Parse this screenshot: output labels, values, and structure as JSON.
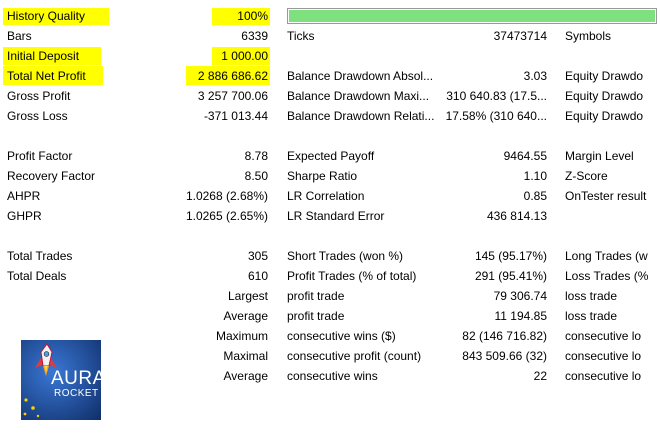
{
  "history_quality": {
    "label": "History Quality",
    "value": "100%",
    "progress_fraction": 1.0
  },
  "rows": [
    {
      "c1": "Bars",
      "c2": "6339",
      "c3": "Ticks",
      "c4": "37473714",
      "c5": "Symbols"
    },
    {
      "c1": "Initial Deposit",
      "c2": "1 000.00",
      "c3": "",
      "c4": "",
      "c5": ""
    },
    {
      "c1": "Total Net Profit",
      "c2": "2 886 686.62",
      "c3": "Balance Drawdown Absol...",
      "c4": "3.03",
      "c5": "Equity Drawdo"
    },
    {
      "c1": "Gross Profit",
      "c2": "3 257 700.06",
      "c3": "Balance Drawdown Maxi...",
      "c4": "310 640.83 (17.5...",
      "c5": "Equity Drawdo"
    },
    {
      "c1": "Gross Loss",
      "c2": "-371 013.44",
      "c3": "Balance Drawdown Relati...",
      "c4": "17.58% (310 640...",
      "c5": "Equity Drawdo"
    },
    {
      "c1": "",
      "c2": "",
      "c3": "",
      "c4": "",
      "c5": ""
    },
    {
      "c1": "Profit Factor",
      "c2": "8.78",
      "c3": "Expected Payoff",
      "c4": "9464.55",
      "c5": "Margin Level"
    },
    {
      "c1": "Recovery Factor",
      "c2": "8.50",
      "c3": "Sharpe Ratio",
      "c4": "1.10",
      "c5": "Z-Score"
    },
    {
      "c1": "AHPR",
      "c2": "1.0268 (2.68%)",
      "c3": "LR Correlation",
      "c4": "0.85",
      "c5": "OnTester result"
    },
    {
      "c1": "GHPR",
      "c2": "1.0265 (2.65%)",
      "c3": "LR Standard Error",
      "c4": "436 814.13",
      "c5": ""
    },
    {
      "c1": "",
      "c2": "",
      "c3": "",
      "c4": "",
      "c5": ""
    },
    {
      "c1": "Total Trades",
      "c2": "305",
      "c3": "Short Trades (won %)",
      "c4": "145 (95.17%)",
      "c5": "Long Trades (w"
    },
    {
      "c1": "Total Deals",
      "c2": "610",
      "c3": "Profit Trades (% of total)",
      "c4": "291 (95.41%)",
      "c5": "Loss Trades (%"
    },
    {
      "c1": "",
      "c2": "Largest",
      "c3": "profit trade",
      "c4": "79 306.74",
      "c5": "loss trade"
    },
    {
      "c1": "",
      "c2": "Average",
      "c3": "profit trade",
      "c4": "11 194.85",
      "c5": "loss trade"
    },
    {
      "c1": "",
      "c2": "Maximum",
      "c3": "consecutive wins ($)",
      "c4": "82 (146 716.82)",
      "c5": "consecutive lo"
    },
    {
      "c1": "",
      "c2": "Maximal",
      "c3": "consecutive profit (count)",
      "c4": "843 509.66 (32)",
      "c5": "consecutive lo"
    },
    {
      "c1": "",
      "c2": "Average",
      "c3": "consecutive wins",
      "c4": "22",
      "c5": "consecutive lo"
    }
  ],
  "logo": {
    "line1": "AURA",
    "line2": "ROCKET",
    "icon": "rocket-icon"
  },
  "colors": {
    "highlight": "#ffff00",
    "progress_fill": "#7ee17e",
    "logo_bg": "#1d4fa7"
  }
}
